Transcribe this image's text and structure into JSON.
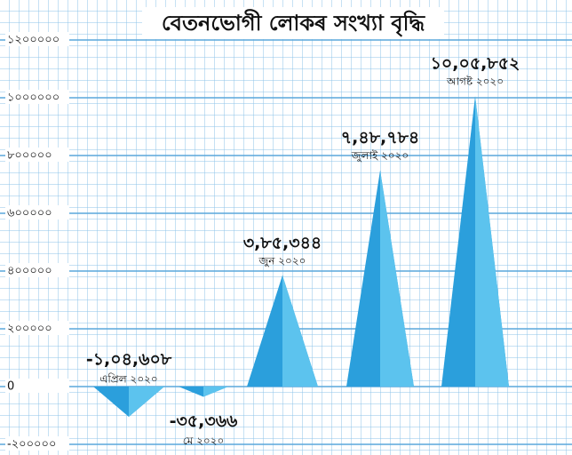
{
  "chart_data": {
    "type": "triangle-bar",
    "title": "বেতনভোগী লোকৰ সংখ্যা বৃদ্ধি",
    "categories": [
      "এপ্ৰিল ২০২০",
      "মে ২০২০",
      "জুন ২০২০",
      "জুলাই ২০২০",
      "আগষ্ট ২০২০"
    ],
    "values": [
      -104608,
      -35366,
      385344,
      748784,
      1005852
    ],
    "value_labels": [
      "-১,০৪,৬০৮",
      "-৩৫,৩৬৬",
      "৩,৮৫,৩৪৪",
      "৭,৪৮,৭৮৪",
      "১০,০৫,৮৫২"
    ],
    "color": "#2b9fdc",
    "ylim": [
      -200000,
      1200000
    ],
    "yticks": [
      {
        "value": -200000,
        "label": "-২০০০০০"
      },
      0,
      {
        "value": 200000,
        "label": "২০০০০০"
      },
      {
        "value": 400000,
        "label": "৪০০০০০"
      },
      {
        "value": 600000,
        "label": "৬০০০০০"
      },
      {
        "value": 800000,
        "label": "৮০০০০০"
      },
      {
        "value": 1000000,
        "label": "১০০০০০০"
      },
      {
        "value": 1200000,
        "label": "১২০০০০০"
      }
    ],
    "grid": true
  }
}
